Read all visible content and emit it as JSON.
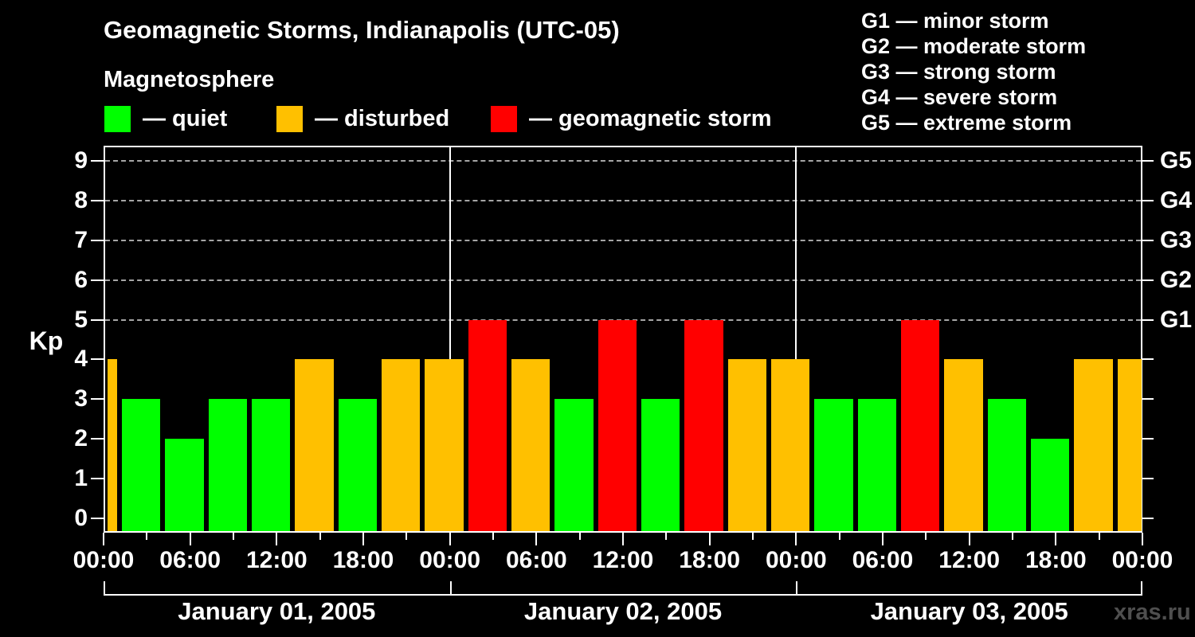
{
  "title": "Geomagnetic Storms, Indianapolis (UTC-05)",
  "subtitle": "Magnetosphere",
  "watermark": "xras.ru",
  "legend": {
    "items": [
      {
        "label": "— quiet",
        "color": "#00ff00",
        "category": "quiet"
      },
      {
        "label": "— disturbed",
        "color": "#ffc000",
        "category": "disturbed"
      },
      {
        "label": "— geomagnetic storm",
        "color": "#ff0000",
        "category": "storm"
      }
    ]
  },
  "g_scale_legend": [
    "G1 — minor storm",
    "G2 — moderate storm",
    "G3 — strong storm",
    "G4 — severe storm",
    "G5 — extreme storm"
  ],
  "chart_data": {
    "type": "bar",
    "title": "Geomagnetic Storms, Indianapolis (UTC-05)",
    "xlabel": "",
    "ylabel": "Kp",
    "ylim": [
      0,
      9
    ],
    "y_ticks": [
      0,
      1,
      2,
      3,
      4,
      5,
      6,
      7,
      8,
      9
    ],
    "gridlines_at": [
      5,
      6,
      7,
      8,
      9
    ],
    "grid": "dashed, storm levels only",
    "legend_position": "top-left",
    "hours_total": 72,
    "x_minor_tick_every_hours": 3,
    "x_major_tick_every_hours": 6,
    "x_tick_labels": [
      "00:00",
      "06:00",
      "12:00",
      "18:00",
      "00:00",
      "06:00",
      "12:00",
      "18:00",
      "00:00",
      "06:00",
      "12:00",
      "18:00",
      "00:00"
    ],
    "right_axis_labels": [
      {
        "kp": 5,
        "label": "G1"
      },
      {
        "kp": 6,
        "label": "G2"
      },
      {
        "kp": 7,
        "label": "G3"
      },
      {
        "kp": 8,
        "label": "G4"
      },
      {
        "kp": 9,
        "label": "G5"
      }
    ],
    "days": [
      {
        "label": "January 01, 2005",
        "start_hour": 0,
        "end_hour": 24
      },
      {
        "label": "January 02, 2005",
        "start_hour": 24,
        "end_hour": 48
      },
      {
        "label": "January 03, 2005",
        "start_hour": 48,
        "end_hour": 72
      }
    ],
    "category_colors": {
      "quiet": "#00ff00",
      "disturbed": "#ffc000",
      "storm": "#ff0000"
    },
    "bars": [
      {
        "start_hour": 0,
        "end_hour": 1,
        "kp": 4,
        "category": "disturbed"
      },
      {
        "start_hour": 1,
        "end_hour": 4,
        "kp": 3,
        "category": "quiet"
      },
      {
        "start_hour": 4,
        "end_hour": 7,
        "kp": 2,
        "category": "quiet"
      },
      {
        "start_hour": 7,
        "end_hour": 10,
        "kp": 3,
        "category": "quiet"
      },
      {
        "start_hour": 10,
        "end_hour": 13,
        "kp": 3,
        "category": "quiet"
      },
      {
        "start_hour": 13,
        "end_hour": 16,
        "kp": 4,
        "category": "disturbed"
      },
      {
        "start_hour": 16,
        "end_hour": 19,
        "kp": 3,
        "category": "quiet"
      },
      {
        "start_hour": 19,
        "end_hour": 22,
        "kp": 4,
        "category": "disturbed"
      },
      {
        "start_hour": 22,
        "end_hour": 25,
        "kp": 4,
        "category": "disturbed"
      },
      {
        "start_hour": 25,
        "end_hour": 28,
        "kp": 5,
        "category": "storm"
      },
      {
        "start_hour": 28,
        "end_hour": 31,
        "kp": 4,
        "category": "disturbed"
      },
      {
        "start_hour": 31,
        "end_hour": 34,
        "kp": 3,
        "category": "quiet"
      },
      {
        "start_hour": 34,
        "end_hour": 37,
        "kp": 5,
        "category": "storm"
      },
      {
        "start_hour": 37,
        "end_hour": 40,
        "kp": 3,
        "category": "quiet"
      },
      {
        "start_hour": 40,
        "end_hour": 43,
        "kp": 5,
        "category": "storm"
      },
      {
        "start_hour": 43,
        "end_hour": 46,
        "kp": 4,
        "category": "disturbed"
      },
      {
        "start_hour": 46,
        "end_hour": 49,
        "kp": 4,
        "category": "disturbed"
      },
      {
        "start_hour": 49,
        "end_hour": 52,
        "kp": 3,
        "category": "quiet"
      },
      {
        "start_hour": 52,
        "end_hour": 55,
        "kp": 3,
        "category": "quiet"
      },
      {
        "start_hour": 55,
        "end_hour": 58,
        "kp": 5,
        "category": "storm"
      },
      {
        "start_hour": 58,
        "end_hour": 61,
        "kp": 4,
        "category": "disturbed"
      },
      {
        "start_hour": 61,
        "end_hour": 64,
        "kp": 3,
        "category": "quiet"
      },
      {
        "start_hour": 64,
        "end_hour": 67,
        "kp": 2,
        "category": "quiet"
      },
      {
        "start_hour": 67,
        "end_hour": 70,
        "kp": 4,
        "category": "disturbed"
      },
      {
        "start_hour": 70,
        "end_hour": 72,
        "kp": 4,
        "category": "disturbed"
      }
    ]
  }
}
